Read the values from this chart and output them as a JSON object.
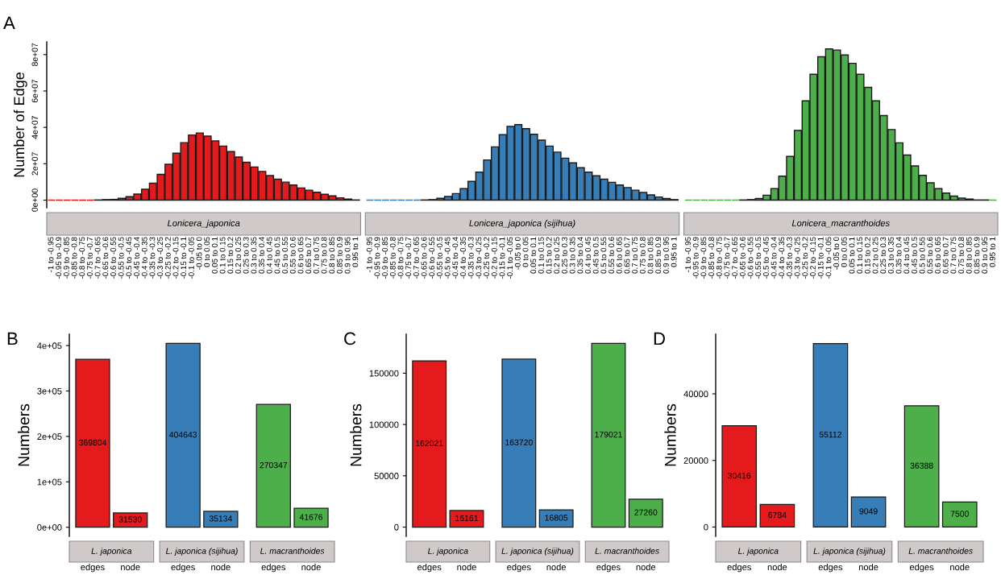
{
  "chart_data": [
    {
      "type": "bar",
      "ylabel": "Number of Edge",
      "annotations": [
        "A"
      ],
      "categories": [
        "-1 to -0.95",
        "-0.95 to -0.9",
        "-0.9 to -0.85",
        "-0.85 to -0.8",
        "-0.8 to -0.75",
        "-0.75 to -0.7",
        "-0.7 to -0.65",
        "-0.65 to -0.6",
        "-0.6 to -0.55",
        "-0.55 to -0.5",
        "-0.5 to -0.45",
        "-0.45 to -0.4",
        "-0.4 to -0.35",
        "-0.35 to -0.3",
        "-0.3 to -0.25",
        "-0.25 to -0.2",
        "-0.2 to -0.15",
        "-0.15 to -0.1",
        "-0.1 to -0.05",
        "-0.05 to 0",
        "0 to 0.05",
        "0.05 to 0.1",
        "0.1 to 0.15",
        "0.15 to 0.2",
        "0.2 to 0.25",
        "0.25 to 0.3",
        "0.3 to 0.35",
        "0.35 to 0.4",
        "0.4 to 0.45",
        "0.45 to 0.5",
        "0.5 to 0.55",
        "0.55 to 0.6",
        "0.6 to 0.65",
        "0.65 to 0.7",
        "0.7 to 0.75",
        "0.75 to 0.8",
        "0.8 to 0.85",
        "0.85 to 0.9",
        "0.9 to 0.95",
        "0.95 to 1",
        "-1 to -0.95",
        "-0.95 to -0.9",
        "-0.9 to -0.85",
        "-0.85 to -0.8",
        "-0.8 to -0.75",
        "-0.75 to -0.7",
        "-0.7 to -0.65",
        "-0.65 to -0.6",
        "-0.6 to -0.55",
        "-0.55 to -0.5",
        "-0.5 to -0.45",
        "-0.45 to -0.4",
        "-0.4 to -0.35",
        "-0.35 to -0.3",
        "-0.3 to -0.25",
        "-0.25 to -0.2",
        "-0.2 to -0.15",
        "-0.15 to -0.1",
        "-0.1 to -0.05",
        "-0.05 to 0",
        "0 to 0.05",
        "0.05 to 0.1",
        "0.1 to 0.15",
        "0.15 to 0.2",
        "0.2 to 0.25",
        "0.25 to 0.3",
        "0.3 to 0.35",
        "0.35 to 0.4",
        "0.4 to 0.45",
        "0.45 to 0.5",
        "0.5 to 0.55",
        "0.55 to 0.6",
        "0.6 to 0.65",
        "0.65 to 0.7",
        "0.7 to 0.75",
        "0.75 to 0.8",
        "0.8 to 0.85",
        "0.85 to 0.9",
        "0.9 to 0.95",
        "0.95 to 1",
        "-1 to -0.95",
        "-0.95 to -0.9",
        "-0.9 to -0.85",
        "-0.85 to -0.8",
        "-0.8 to -0.75",
        "-0.75 to -0.7",
        "-0.7 to -0.65",
        "-0.65 to -0.6",
        "-0.6 to -0.55",
        "-0.55 to -0.5",
        "-0.5 to -0.45",
        "-0.45 to -0.4",
        "-0.4 to -0.35",
        "-0.35 to -0.3",
        "-0.3 to -0.25",
        "-0.25 to -0.2",
        "-0.2 to -0.15",
        "-0.15 to -0.1",
        "-0.1 to -0.05",
        "-0.05 to 0",
        "0 to 0.05",
        "0.05 to 0.1",
        "0.1 to 0.15",
        "0.15 to 0.2",
        "0.2 to 0.25",
        "0.25 to 0.3",
        "0.3 to 0.35",
        "0.35 to 0.4",
        "0.4 to 0.45",
        "0.45 to 0.5",
        "0.5 to 0.55",
        "0.55 to 0.6",
        "0.6 to 0.65",
        "0.65 to 0.7",
        "0.7 to 0.75",
        "0.75 to 0.8",
        "0.8 to 0.85",
        "0.85 to 0.9",
        "0.9 to 0.95",
        "0.95 to 1"
      ],
      "series": [
        {
          "name": "Lonicera_japonica",
          "color": "#e41a1c",
          "values": [
            0,
            0,
            0,
            0,
            0,
            0,
            100000,
            300000,
            400000,
            1000000,
            1900000,
            3300000,
            6000000,
            9300000,
            14200000,
            19700000,
            25800000,
            31600000,
            35800000,
            36900000,
            35200000,
            32600000,
            29700000,
            26700000,
            23700000,
            20800000,
            18200000,
            15800000,
            13500000,
            11500000,
            9900000,
            8300000,
            6700000,
            5500000,
            4300000,
            3200000,
            2300000,
            1300000,
            600000,
            100000,
            null,
            null,
            null,
            null,
            null,
            null,
            null,
            null,
            null,
            null,
            null,
            null,
            null,
            null,
            null,
            null,
            null,
            null,
            null,
            null,
            null,
            null,
            null,
            null,
            null,
            null,
            null,
            null,
            null,
            null,
            null,
            null,
            null,
            null,
            null,
            null,
            null,
            null,
            null,
            null,
            null,
            null,
            null,
            null,
            null,
            null,
            null,
            null,
            null,
            null,
            null,
            null,
            null,
            null,
            null,
            null,
            null,
            null,
            null,
            null,
            null,
            null,
            null,
            null,
            null,
            null,
            null,
            null,
            null,
            null,
            null,
            null,
            null,
            null,
            null,
            null,
            null,
            null,
            null,
            null
          ]
        },
        {
          "name": "Lonicera_japonica (sijihua)",
          "color": "#377eb8",
          "values": [
            null,
            null,
            null,
            null,
            null,
            null,
            null,
            null,
            null,
            null,
            null,
            null,
            null,
            null,
            null,
            null,
            null,
            null,
            null,
            null,
            null,
            null,
            null,
            null,
            null,
            null,
            null,
            null,
            null,
            null,
            null,
            null,
            null,
            null,
            null,
            null,
            null,
            null,
            null,
            null,
            0,
            0,
            0,
            0,
            0,
            0,
            0,
            100000,
            300000,
            1000000,
            2000000,
            3600000,
            6300000,
            10300000,
            15400000,
            22100000,
            29300000,
            36000000,
            40500000,
            41500000,
            39300000,
            36200000,
            33000000,
            29700000,
            26400000,
            23100000,
            20500000,
            17800000,
            15400000,
            13400000,
            11500000,
            9800000,
            8300000,
            6900000,
            5500000,
            4200000,
            2900000,
            1700000,
            900000,
            300000,
            null,
            null,
            null,
            null,
            null,
            null,
            null,
            null,
            null,
            null,
            null,
            null,
            null,
            null,
            null,
            null,
            null,
            null,
            null,
            null,
            null,
            null,
            null,
            null,
            null,
            null,
            null,
            null,
            null,
            null,
            null,
            null,
            null,
            null,
            null,
            null,
            null,
            null,
            null,
            null
          ]
        },
        {
          "name": "Lonicera_macranthoides",
          "color": "#4daf4a",
          "values": [
            null,
            null,
            null,
            null,
            null,
            null,
            null,
            null,
            null,
            null,
            null,
            null,
            null,
            null,
            null,
            null,
            null,
            null,
            null,
            null,
            null,
            null,
            null,
            null,
            null,
            null,
            null,
            null,
            null,
            null,
            null,
            null,
            null,
            null,
            null,
            null,
            null,
            null,
            null,
            null,
            null,
            null,
            null,
            null,
            null,
            null,
            null,
            null,
            null,
            null,
            null,
            null,
            null,
            null,
            null,
            null,
            null,
            null,
            null,
            null,
            null,
            null,
            null,
            null,
            null,
            null,
            null,
            null,
            null,
            null,
            null,
            null,
            null,
            null,
            null,
            null,
            null,
            null,
            null,
            null,
            0,
            0,
            0,
            0,
            0,
            0,
            0,
            100000,
            300000,
            900000,
            2700000,
            6300000,
            13200000,
            24000000,
            38300000,
            54600000,
            69200000,
            78800000,
            83100000,
            82500000,
            79800000,
            75200000,
            69200000,
            62000000,
            54600000,
            46500000,
            38800000,
            31500000,
            24800000,
            18800000,
            13600000,
            9500000,
            6300000,
            3900000,
            2200000,
            1100000,
            600000,
            100000,
            100000,
            0
          ]
        }
      ],
      "ylim": [
        -4200000,
        87000000
      ],
      "yticks": [
        {
          "value": 0,
          "label": "0e+00"
        },
        {
          "value": 20000000,
          "label": "2e+07"
        },
        {
          "value": 40000000,
          "label": "4e+07"
        },
        {
          "value": 60000000,
          "label": "6e+07"
        },
        {
          "value": 80000000,
          "label": "8e+07"
        }
      ]
    },
    {
      "type": "bar",
      "ylabel": "Numbers",
      "annotations": [
        "B"
      ],
      "data_labels": true,
      "categories": [
        "edges",
        "node",
        "edges",
        "node",
        "edges",
        "node"
      ],
      "series": [
        {
          "name": "L. japonica",
          "color": "#e41a1c",
          "values": [
            369804,
            31530,
            null,
            null,
            null,
            null
          ]
        },
        {
          "name": "L. japonica (sijihua)",
          "color": "#377eb8",
          "values": [
            null,
            null,
            404643,
            35134,
            null,
            null
          ]
        },
        {
          "name": "L. macranthoides",
          "color": "#4daf4a",
          "values": [
            null,
            null,
            null,
            null,
            270347,
            41676
          ]
        }
      ],
      "ylim": [
        -20000,
        425000
      ],
      "yticks": [
        {
          "value": 0,
          "label": "0e+00"
        },
        {
          "value": 100000,
          "label": "1e+05"
        },
        {
          "value": 200000,
          "label": "2e+05"
        },
        {
          "value": 300000,
          "label": "3e+05"
        },
        {
          "value": 400000,
          "label": "4e+05"
        }
      ]
    },
    {
      "type": "bar",
      "ylabel": "Numbers",
      "annotations": [
        "C"
      ],
      "data_labels": true,
      "categories": [
        "edges",
        "node",
        "edges",
        "node",
        "edges",
        "node"
      ],
      "series": [
        {
          "name": "L. japonica",
          "color": "#e41a1c",
          "values": [
            162021,
            16161,
            null,
            null,
            null,
            null
          ]
        },
        {
          "name": "L. japonica (sijihua)",
          "color": "#377eb8",
          "values": [
            null,
            null,
            163720,
            16805,
            null,
            null
          ]
        },
        {
          "name": "L. macranthoides",
          "color": "#4daf4a",
          "values": [
            null,
            null,
            null,
            null,
            179021,
            27260
          ]
        }
      ],
      "ylim": [
        -9000,
        188000
      ],
      "yticks": [
        0,
        50000,
        100000,
        150000
      ]
    },
    {
      "type": "bar",
      "ylabel": "Numbers",
      "annotations": [
        "D"
      ],
      "data_labels": true,
      "categories": [
        "edges",
        "node",
        "edges",
        "node",
        "edges",
        "node"
      ],
      "series": [
        {
          "name": "L. japonica",
          "color": "#e41a1c",
          "values": [
            30416,
            6784,
            null,
            null,
            null,
            null
          ]
        },
        {
          "name": "L. japonica (sijihua)",
          "color": "#377eb8",
          "values": [
            null,
            null,
            55112,
            9049,
            null,
            null
          ]
        },
        {
          "name": "L. macranthoides",
          "color": "#4daf4a",
          "values": [
            null,
            null,
            null,
            null,
            36388,
            7500
          ]
        }
      ],
      "ylim": [
        -2800,
        57900
      ],
      "yticks": [
        0,
        20000,
        40000
      ]
    }
  ]
}
